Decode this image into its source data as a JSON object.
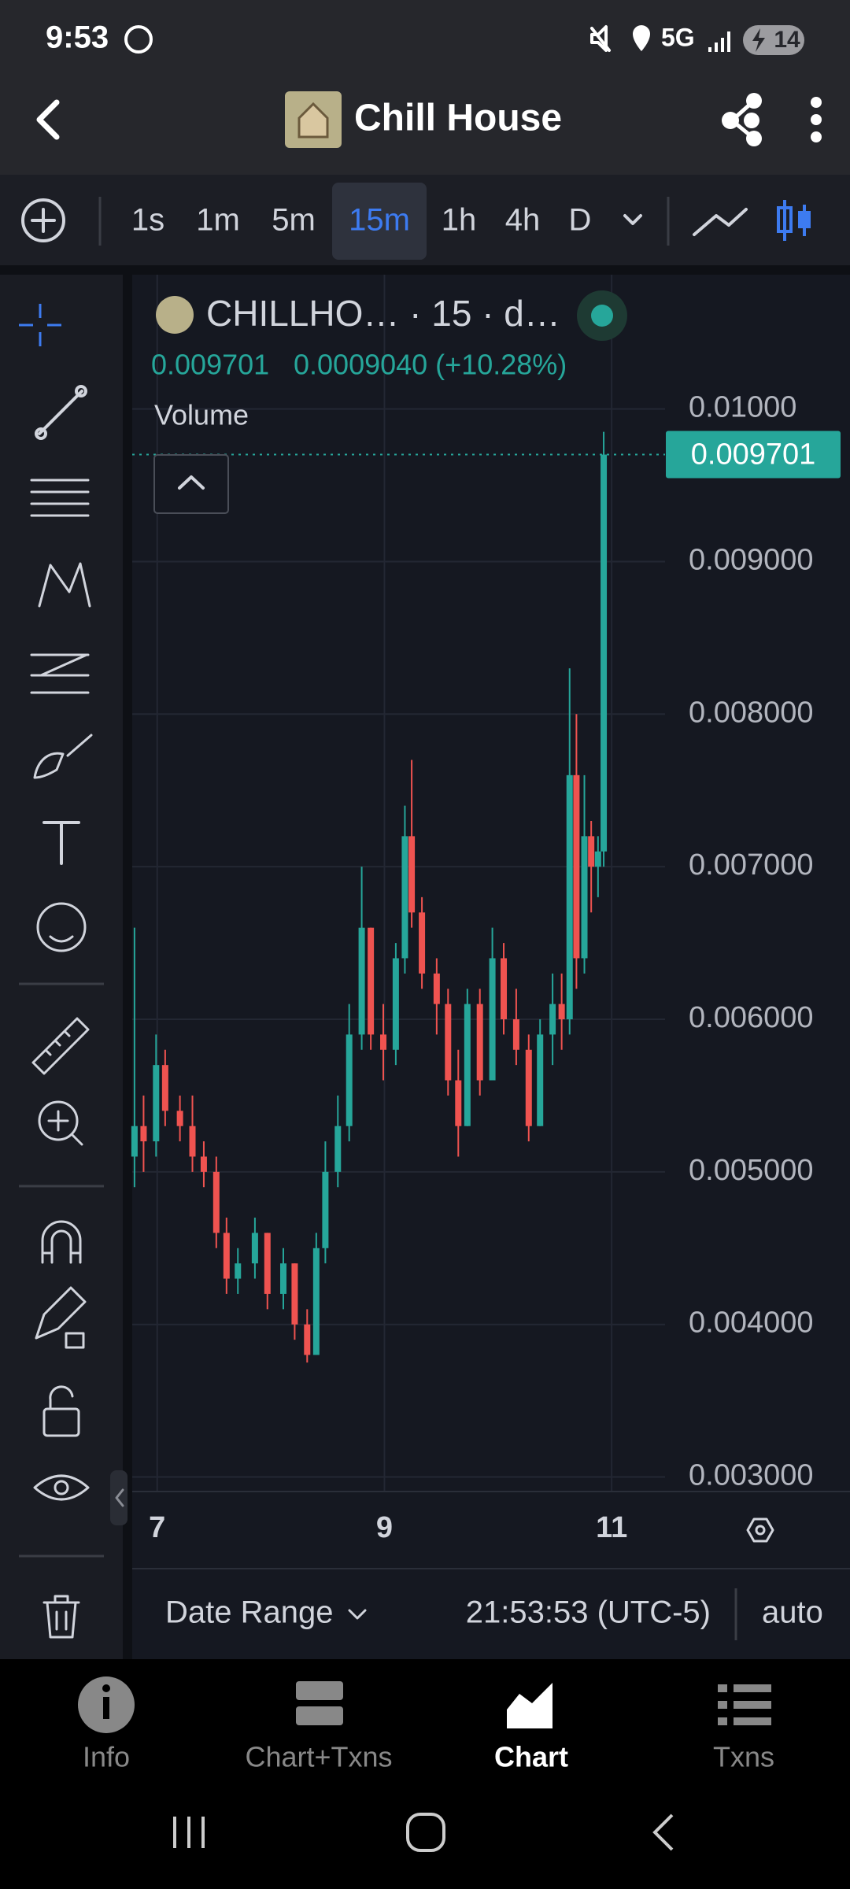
{
  "status_bar": {
    "time": "9:53",
    "network": "5G",
    "battery": "14"
  },
  "header": {
    "title": "Chill House"
  },
  "toolbar": {
    "timeframes": [
      "1s",
      "1m",
      "5m",
      "15m",
      "1h",
      "4h",
      "D"
    ],
    "selected": "15m"
  },
  "chart_data": {
    "type": "candlestick",
    "title": "CHILLHO… · 15 · d…",
    "change": "0.0009040 (+10.28%)",
    "volume_label": "Volume",
    "last_price": 0.009701,
    "up_color": "#26a69a",
    "down_color": "#ef5350",
    "grid": true,
    "xlim": [
      6.78,
      11.47
    ],
    "xticks": [
      7,
      9,
      11
    ],
    "ylim": [
      0.00291,
      0.01088
    ],
    "yticks": [
      {
        "value": 0.003,
        "label": "0.003000"
      },
      {
        "value": 0.004,
        "label": "0.004000"
      },
      {
        "value": 0.005,
        "label": "0.005000"
      },
      {
        "value": 0.006,
        "label": "0.006000"
      },
      {
        "value": 0.007,
        "label": "0.007000"
      },
      {
        "value": 0.008,
        "label": "0.008000"
      },
      {
        "value": 0.009,
        "label": "0.009000"
      },
      {
        "value": 0.01,
        "label": "0.01000"
      }
    ],
    "x": [
      6.8,
      6.88,
      6.99,
      7.07,
      7.2,
      7.31,
      7.41,
      7.52,
      7.61,
      7.71,
      7.86,
      7.97,
      8.11,
      8.21,
      8.32,
      8.4,
      8.48,
      8.59,
      8.69,
      8.8,
      8.88,
      8.99,
      9.1,
      9.18,
      9.24,
      9.33,
      9.46,
      9.56,
      9.65,
      9.73,
      9.84,
      9.95,
      10.05,
      10.16,
      10.27,
      10.37,
      10.48,
      10.56,
      10.63,
      10.69,
      10.76,
      10.82,
      10.88,
      10.93
    ],
    "open": [
      0.0051,
      0.0053,
      0.0052,
      0.0057,
      0.0054,
      0.0053,
      0.0051,
      0.005,
      0.0046,
      0.0043,
      0.0044,
      0.0046,
      0.0042,
      0.0044,
      0.004,
      0.0038,
      0.0045,
      0.005,
      0.0053,
      0.0059,
      0.0066,
      0.0059,
      0.0058,
      0.0064,
      0.0072,
      0.0067,
      0.0063,
      0.0061,
      0.0056,
      0.0053,
      0.0061,
      0.0056,
      0.0064,
      0.006,
      0.0058,
      0.0053,
      0.0059,
      0.0061,
      0.006,
      0.0076,
      0.0064,
      0.0072,
      0.007,
      0.0071
    ],
    "high": [
      0.0066,
      0.0055,
      0.0059,
      0.0058,
      0.0055,
      0.0055,
      0.0052,
      0.0051,
      0.0047,
      0.0045,
      0.0047,
      0.0046,
      0.0045,
      0.0044,
      0.0041,
      0.0046,
      0.0052,
      0.0055,
      0.0061,
      0.007,
      0.0066,
      0.0061,
      0.0065,
      0.0074,
      0.0077,
      0.0068,
      0.0064,
      0.0062,
      0.0058,
      0.0062,
      0.0062,
      0.0066,
      0.0065,
      0.0062,
      0.0059,
      0.006,
      0.0063,
      0.0063,
      0.0083,
      0.008,
      0.0076,
      0.0073,
      0.0072,
      0.00985
    ],
    "low": [
      0.0049,
      0.005,
      0.0051,
      0.0053,
      0.0052,
      0.005,
      0.0049,
      0.0045,
      0.0042,
      0.0042,
      0.0043,
      0.0041,
      0.0041,
      0.0039,
      0.00375,
      0.0038,
      0.0044,
      0.0049,
      0.0052,
      0.0058,
      0.0058,
      0.0056,
      0.0057,
      0.0063,
      0.0066,
      0.0062,
      0.0059,
      0.0055,
      0.0051,
      0.0053,
      0.0055,
      0.0056,
      0.0059,
      0.0057,
      0.0052,
      0.0053,
      0.0057,
      0.0058,
      0.0059,
      0.0062,
      0.0063,
      0.0067,
      0.0068,
      0.007
    ],
    "close": [
      0.0053,
      0.0052,
      0.0057,
      0.0054,
      0.0053,
      0.0051,
      0.005,
      0.0046,
      0.0043,
      0.0044,
      0.0046,
      0.0042,
      0.0044,
      0.004,
      0.0038,
      0.0045,
      0.005,
      0.0053,
      0.0059,
      0.0066,
      0.0059,
      0.0058,
      0.0064,
      0.0072,
      0.0067,
      0.0063,
      0.0061,
      0.0056,
      0.0053,
      0.0061,
      0.0056,
      0.0064,
      0.006,
      0.0058,
      0.0053,
      0.0059,
      0.0061,
      0.006,
      0.0076,
      0.0064,
      0.0072,
      0.007,
      0.0071,
      0.009701
    ]
  },
  "footer": {
    "date_range": "Date Range",
    "time": "21:53:53 (UTC-5)",
    "scale": "auto"
  },
  "nav": [
    "Info",
    "Chart+Txns",
    "Chart",
    "Txns"
  ]
}
